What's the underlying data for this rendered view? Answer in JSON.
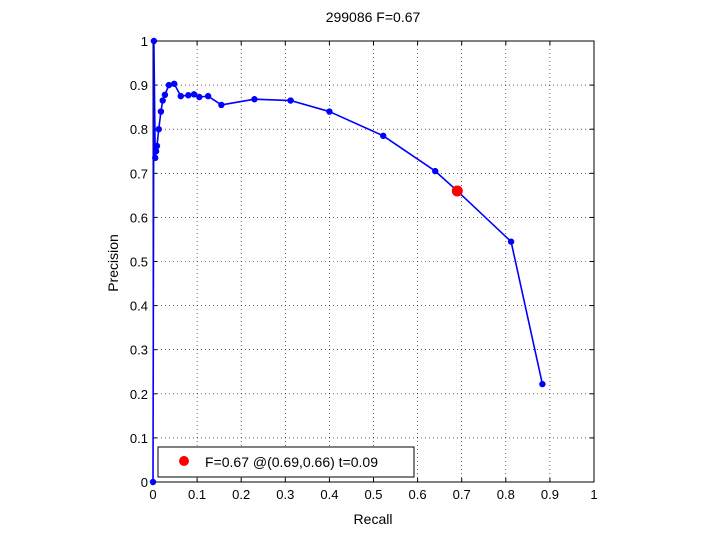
{
  "chart_data": {
    "type": "line",
    "title": "299086 F=0.67",
    "xlabel": "Recall",
    "ylabel": "Precision",
    "xlim": [
      0,
      1
    ],
    "ylim": [
      0,
      1
    ],
    "xticks": [
      "0",
      "0.1",
      "0.2",
      "0.3",
      "0.4",
      "0.5",
      "0.6",
      "0.7",
      "0.8",
      "0.9",
      "1"
    ],
    "yticks": [
      "0",
      "0.1",
      "0.2",
      "0.3",
      "0.4",
      "0.5",
      "0.6",
      "0.7",
      "0.8",
      "0.9",
      "1"
    ],
    "grid": true,
    "legend_position": "bottom-left",
    "series": [
      {
        "color": "#0000ff",
        "points": [
          [
            0.0,
            0.0
          ],
          [
            0.002,
            1.0
          ],
          [
            0.005,
            0.735
          ],
          [
            0.007,
            0.75
          ],
          [
            0.009,
            0.762
          ],
          [
            0.013,
            0.8
          ],
          [
            0.018,
            0.84
          ],
          [
            0.022,
            0.865
          ],
          [
            0.027,
            0.878
          ],
          [
            0.036,
            0.9
          ],
          [
            0.048,
            0.903
          ],
          [
            0.063,
            0.875
          ],
          [
            0.08,
            0.877
          ],
          [
            0.093,
            0.879
          ],
          [
            0.105,
            0.873
          ],
          [
            0.125,
            0.875
          ],
          [
            0.155,
            0.855
          ],
          [
            0.23,
            0.868
          ],
          [
            0.312,
            0.865
          ],
          [
            0.4,
            0.84
          ],
          [
            0.522,
            0.785
          ],
          [
            0.64,
            0.705
          ],
          [
            0.69,
            0.66
          ],
          [
            0.812,
            0.545
          ],
          [
            0.883,
            0.222
          ]
        ]
      }
    ],
    "highlight": {
      "color": "#ff0000",
      "recall": 0.69,
      "precision": 0.66,
      "label": "F=0.67 @(0.69,0.66) t=0.09"
    }
  }
}
